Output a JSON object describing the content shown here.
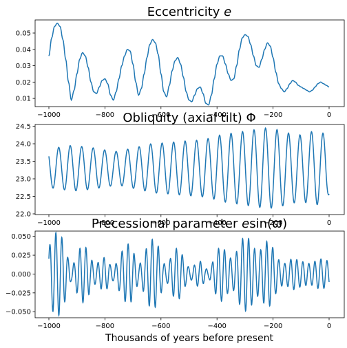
{
  "figure": {
    "xlabel": "Thousands of years before present",
    "line_color": "#1f77b4"
  },
  "chart_data": [
    {
      "type": "line",
      "title": "Eccentricity e",
      "title_plain": "Eccentricity ",
      "title_math": "e",
      "xlabel": "",
      "ylabel": "",
      "xlim": [
        -1000,
        0
      ],
      "ylim": [
        0.005,
        0.058
      ],
      "xticks": [
        -1000,
        -800,
        -600,
        -400,
        -200,
        0
      ],
      "yticks": [
        0.01,
        0.02,
        0.03,
        0.04,
        0.05
      ],
      "ytick_labels": [
        "0.01",
        "0.02",
        "0.03",
        "0.04",
        "0.05"
      ],
      "series": [
        {
          "x": [
            -1000,
            -990,
            -980,
            -970,
            -960,
            -950,
            -940,
            -930,
            -920,
            -910,
            -900,
            -890,
            -880,
            -870,
            -860,
            -850,
            -840,
            -830,
            -820,
            -810,
            -800,
            -790,
            -780,
            -770,
            -760,
            -750,
            -740,
            -730,
            -720,
            -710,
            -700,
            -690,
            -680,
            -670,
            -660,
            -650,
            -640,
            -630,
            -620,
            -610,
            -600,
            -590,
            -580,
            -570,
            -560,
            -550,
            -540,
            -530,
            -520,
            -510,
            -500,
            -490,
            -480,
            -470,
            -460,
            -450,
            -440,
            -430,
            -420,
            -410,
            -400,
            -390,
            -380,
            -370,
            -360,
            -350,
            -340,
            -330,
            -320,
            -310,
            -300,
            -290,
            -280,
            -270,
            -260,
            -250,
            -240,
            -230,
            -220,
            -210,
            -200,
            -190,
            -180,
            -170,
            -160,
            -150,
            -140,
            -130,
            -120,
            -110,
            -100,
            -90,
            -80,
            -70,
            -60,
            -50,
            -40,
            -30,
            -20,
            -10,
            0
          ],
          "y": [
            0.036,
            0.047,
            0.054,
            0.056,
            0.054,
            0.046,
            0.034,
            0.02,
            0.009,
            0.015,
            0.025,
            0.034,
            0.038,
            0.036,
            0.029,
            0.02,
            0.014,
            0.013,
            0.017,
            0.021,
            0.022,
            0.019,
            0.012,
            0.009,
            0.014,
            0.022,
            0.03,
            0.036,
            0.04,
            0.039,
            0.031,
            0.02,
            0.012,
            0.016,
            0.025,
            0.035,
            0.043,
            0.046,
            0.044,
            0.037,
            0.025,
            0.014,
            0.011,
            0.018,
            0.027,
            0.033,
            0.035,
            0.031,
            0.023,
            0.014,
            0.009,
            0.008,
            0.012,
            0.016,
            0.017,
            0.013,
            0.007,
            0.006,
            0.012,
            0.022,
            0.031,
            0.036,
            0.036,
            0.031,
            0.025,
            0.021,
            0.022,
            0.03,
            0.04,
            0.047,
            0.049,
            0.048,
            0.043,
            0.036,
            0.03,
            0.029,
            0.034,
            0.04,
            0.044,
            0.042,
            0.035,
            0.026,
            0.019,
            0.016,
            0.014,
            0.016,
            0.019,
            0.021,
            0.02,
            0.018,
            0.017,
            0.016,
            0.015,
            0.014,
            0.015,
            0.017,
            0.019,
            0.02,
            0.019,
            0.018,
            0.017
          ]
        }
      ]
    },
    {
      "type": "line",
      "title": "Obliquity (axial tilt) Φ",
      "title_plain": "Obliquity (axial tilt) Φ",
      "title_math": "",
      "xlabel": "",
      "ylabel": "",
      "xlim": [
        -1000,
        0
      ],
      "ylim": [
        21.98,
        24.55
      ],
      "xticks": [
        -1000,
        -800,
        -600,
        -400,
        -200,
        0
      ],
      "yticks": [
        22.0,
        22.5,
        23.0,
        23.5,
        24.0,
        24.5
      ],
      "ytick_labels": [
        "22.0",
        "22.5",
        "23.0",
        "23.5",
        "24.0",
        "24.5"
      ],
      "mean": 23.3,
      "period_kyr": 41,
      "series": [
        {
          "x": [
            -1000,
            -959,
            -918,
            -877,
            -836,
            -795,
            -754,
            -713,
            -672,
            -631,
            -590,
            -549,
            -508,
            -467,
            -426,
            -385,
            -344,
            -303,
            -262,
            -221,
            -180,
            -139,
            -98,
            -57,
            -16,
            0
          ],
          "amplitude": [
            0.55,
            0.6,
            0.65,
            0.62,
            0.58,
            0.52,
            0.48,
            0.55,
            0.62,
            0.7,
            0.72,
            0.75,
            0.78,
            0.8,
            0.85,
            0.95,
            1.0,
            1.05,
            1.1,
            1.15,
            1.1,
            1.0,
            0.95,
            1.05,
            1.0,
            0.75
          ]
        }
      ]
    },
    {
      "type": "line",
      "title": "Precessional parameter esin(ϖ)",
      "title_plain": "Precessional parameter ",
      "title_math": "e",
      "title_rest": "sin(ϖ)",
      "xlabel": "Thousands of years before present",
      "ylabel": "",
      "xlim": [
        -1000,
        0
      ],
      "ylim": [
        -0.058,
        0.057
      ],
      "xticks": [
        -1000,
        -800,
        -600,
        -400,
        -200,
        0
      ],
      "yticks": [
        -0.05,
        -0.025,
        0.0,
        0.025,
        0.05
      ],
      "ytick_labels": [
        "−0.050",
        "−0.025",
        "0.000",
        "0.025",
        "0.050"
      ],
      "period_kyr": 21.5,
      "envelope_from": "Eccentricity e"
    }
  ]
}
